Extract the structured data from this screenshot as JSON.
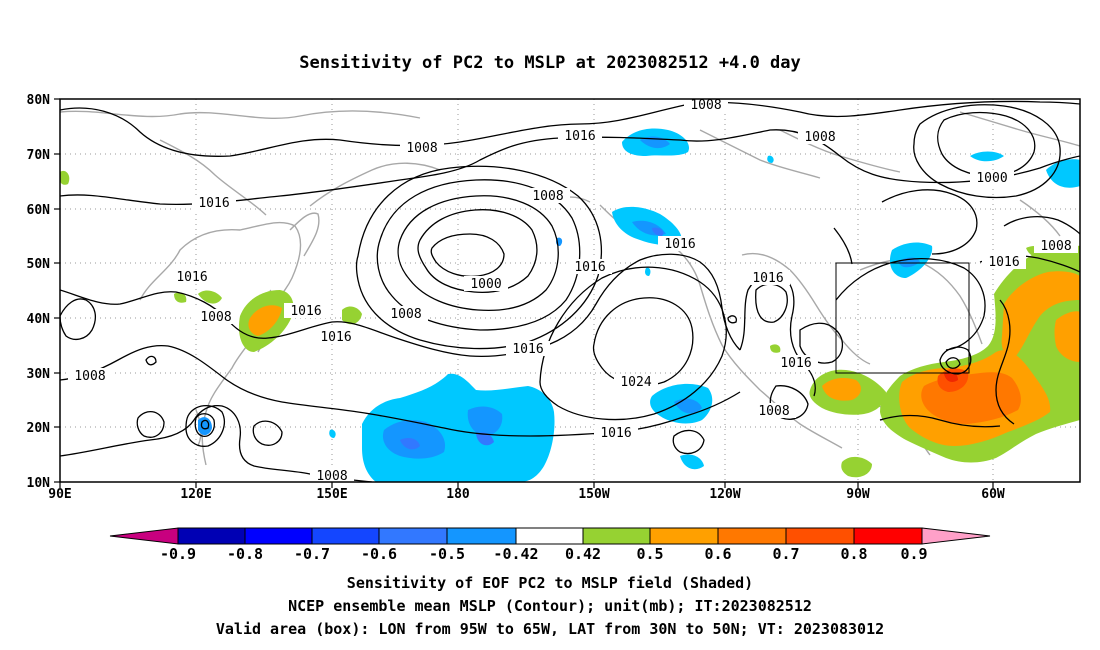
{
  "title": "Sensitivity of PC2 to MSLP at 2023082512 +4.0 day",
  "lat_labels": [
    "80N",
    "70N",
    "60N",
    "50N",
    "40N",
    "30N",
    "20N",
    "10N"
  ],
  "lon_labels": [
    "90E",
    "120E",
    "150E",
    "180",
    "150W",
    "120W",
    "90W",
    "60W"
  ],
  "contour_labels": {
    "c1": "1008",
    "c2": "1008",
    "c3": "1016",
    "c4": "1008",
    "c5": "1000",
    "c6": "1016",
    "c7": "1008",
    "c8": "1016",
    "c9": "1016",
    "c10": "1008",
    "c11": "1016",
    "c12": "1008",
    "c13": "1000",
    "c14": "1016",
    "c15": "1008",
    "c16": "1016",
    "c17": "1008",
    "c18": "1016",
    "c19": "1024",
    "c20": "1016",
    "c21": "1016",
    "c22": "1008",
    "c23": "1016",
    "c24": "1008"
  },
  "colorbar": {
    "labels": [
      "-0.9",
      "-0.8",
      "-0.7",
      "-0.6",
      "-0.5",
      "-0.42",
      "0.42",
      "0.5",
      "0.6",
      "0.7",
      "0.8",
      "0.9"
    ],
    "colors": [
      "#c8007f",
      "#0000b4",
      "#0000ff",
      "#1446ff",
      "#3278ff",
      "#1496ff",
      "#00c8ff",
      "#ffffff",
      "#96d232",
      "#ffa000",
      "#ff7800",
      "#ff5000",
      "#f02800",
      "#ff0000",
      "#ffa0c8"
    ]
  },
  "captions": {
    "line1": "Sensitivity of EOF PC2 to MSLP field (Shaded)",
    "line2": "NCEP ensemble mean MSLP (Contour); unit(mb); IT:2023082512",
    "line3": "Valid area (box): LON from 95W to 65W, LAT from 30N to 50N; VT: 2023083012"
  }
}
